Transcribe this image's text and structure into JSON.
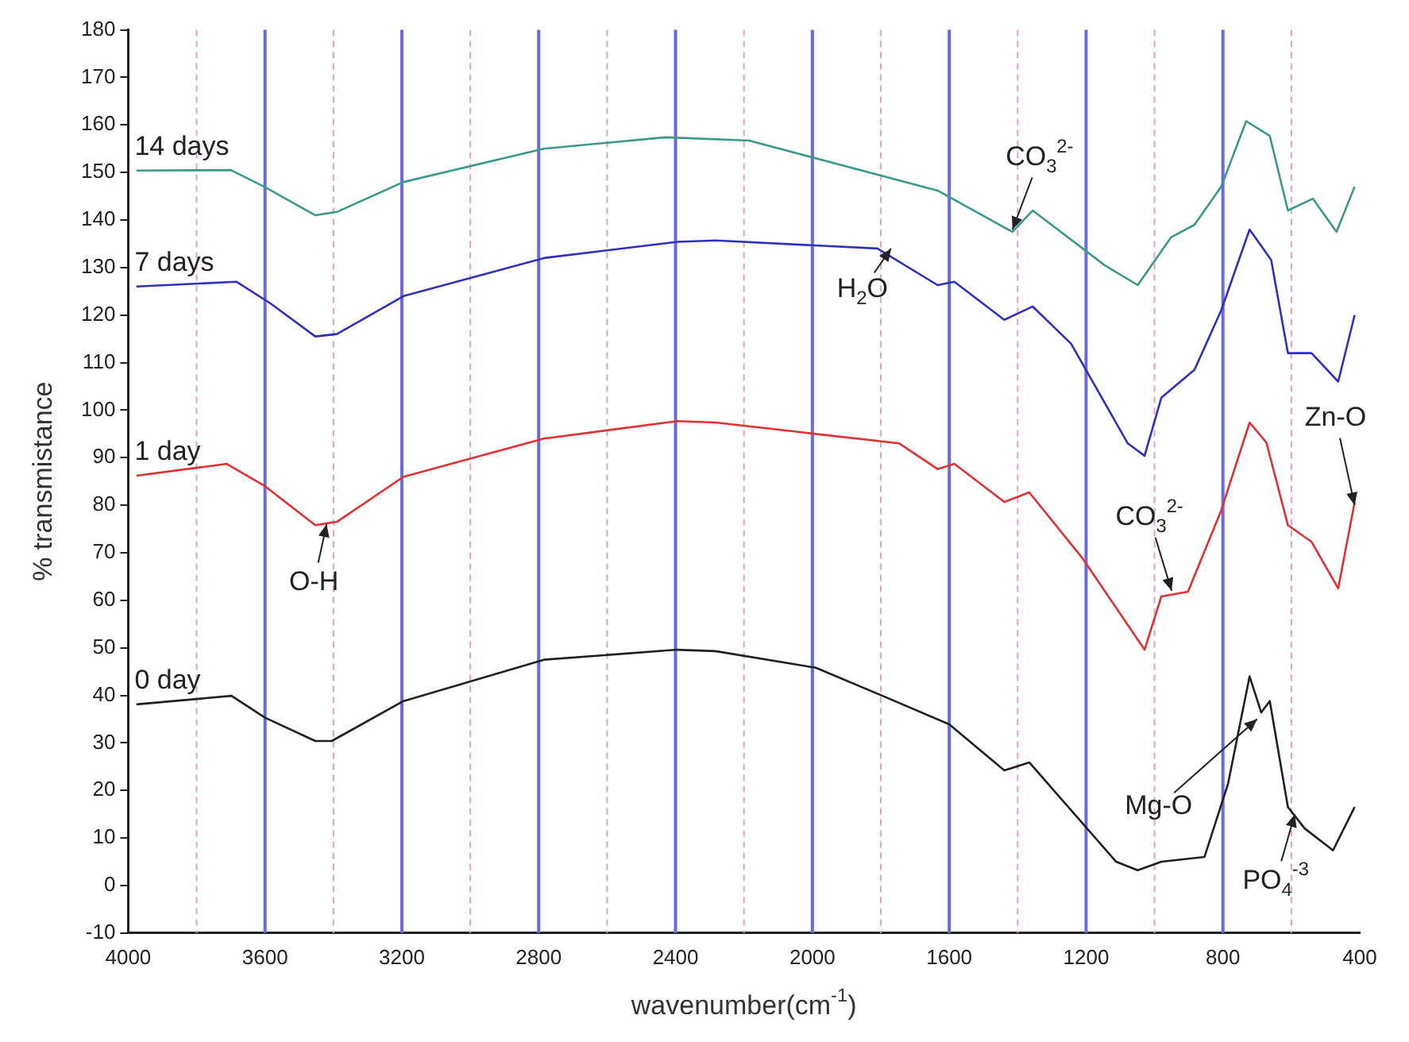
{
  "chart_data": {
    "type": "line",
    "xlabel": "wavenumber(cm$^{-1}$)",
    "ylabel": "% transmistance",
    "xlim": [
      4000,
      400
    ],
    "ylim": [
      -10,
      180
    ],
    "xticks": [
      4000,
      {
        "value": 3800,
        "label": null
      },
      3600,
      {
        "value": 3400,
        "label": null
      },
      3200,
      {
        "value": 3000,
        "label": null
      },
      2800,
      {
        "value": 2600,
        "label": null
      },
      2400,
      {
        "value": 2200,
        "label": null
      },
      2000,
      {
        "value": 1800,
        "label": null
      },
      1600,
      {
        "value": 1400,
        "label": null
      },
      1200,
      {
        "value": 1000,
        "label": null
      },
      800,
      {
        "value": 600,
        "label": null
      },
      400
    ],
    "yticks": [
      -10,
      0,
      10,
      20,
      30,
      40,
      50,
      60,
      70,
      80,
      90,
      100,
      110,
      120,
      130,
      140,
      150,
      160,
      170,
      180
    ],
    "grid": "x",
    "legend": false,
    "marker": "none",
    "line_style": "solid",
    "series": [
      {
        "name": "14 days",
        "color": "#3a9a8a",
        "x": [
          3976,
          3700,
          3600,
          3453,
          3390,
          3195,
          2785,
          2429,
          2185,
          1634,
          1415,
          1356,
          1146,
          1049,
          951,
          883,
          805,
          732,
          663,
          610,
          537,
          468,
          415
        ],
        "values": [
          150.4,
          150.5,
          146.9,
          141,
          141.7,
          148,
          155,
          157.4,
          156.7,
          146.2,
          137.5,
          142,
          130.5,
          126.3,
          136.4,
          139,
          147,
          160.8,
          157.7,
          142,
          144.5,
          137.5,
          147
        ]
      },
      {
        "name": "7 days",
        "color": "#3030c0",
        "x": [
          3976,
          3683,
          3585,
          3453,
          3390,
          3195,
          2785,
          2395,
          2283,
          1810,
          1634,
          1585,
          1439,
          1356,
          1244,
          1078,
          1029,
          980,
          883,
          805,
          722,
          659,
          610,
          541,
          463,
          415
        ],
        "values": [
          126,
          127,
          122.5,
          115.5,
          116,
          124,
          132,
          135.4,
          135.7,
          134,
          126.3,
          127,
          119,
          121.8,
          114,
          93,
          90.4,
          102.6,
          108.5,
          121,
          138,
          131.6,
          112,
          112,
          106,
          120
        ]
      },
      {
        "name": "1 day",
        "color": "#e03030",
        "x": [
          3976,
          3712,
          3600,
          3453,
          3390,
          3195,
          2785,
          2395,
          2283,
          1746,
          1634,
          1585,
          1439,
          1366,
          1210,
          1029,
          980,
          902,
          805,
          722,
          673,
          610,
          541,
          463,
          415
        ],
        "values": [
          86.2,
          88.7,
          84,
          75.8,
          76.5,
          86,
          94,
          97.7,
          97.4,
          93,
          87.6,
          88.7,
          80.7,
          82.7,
          68.8,
          49.6,
          60.8,
          61.8,
          78.9,
          97.4,
          93.2,
          75.8,
          72.3,
          62.5,
          80.6
        ]
      },
      {
        "name": "0 day",
        "color": "#202020",
        "x": [
          3976,
          3698,
          3600,
          3453,
          3405,
          3195,
          2785,
          2395,
          2283,
          1990,
          1795,
          1600,
          1439,
          1366,
          1112,
          1049,
          980,
          854,
          785,
          722,
          688,
          663,
          610,
          561,
          478,
          415
        ],
        "values": [
          38.1,
          39.9,
          35.3,
          30.4,
          30.4,
          38.8,
          47.5,
          49.6,
          49.3,
          45.8,
          39.9,
          33.9,
          24.2,
          25.9,
          5,
          3.2,
          5,
          6,
          21.4,
          44,
          36.4,
          38.8,
          16.5,
          12,
          7.4,
          16.5
        ]
      }
    ],
    "annotations": [
      {
        "text": "H$_{2}$O",
        "x": 1770,
        "y": 134
      },
      {
        "text": "CO$_{3}$$^{2-}$",
        "x": 1415,
        "y": 138
      },
      {
        "text": "O-H",
        "x": 3420,
        "y": 76
      },
      {
        "text": "CO$_{3}$$^{2-}$",
        "x": 950,
        "y": 62
      },
      {
        "text": "Zn-O",
        "x": 415,
        "y": 80
      },
      {
        "text": "Mg-O",
        "x": 700,
        "y": 35
      },
      {
        "text": "PO$_{4}$$^{-3}$",
        "x": 590,
        "y": 15
      }
    ]
  }
}
